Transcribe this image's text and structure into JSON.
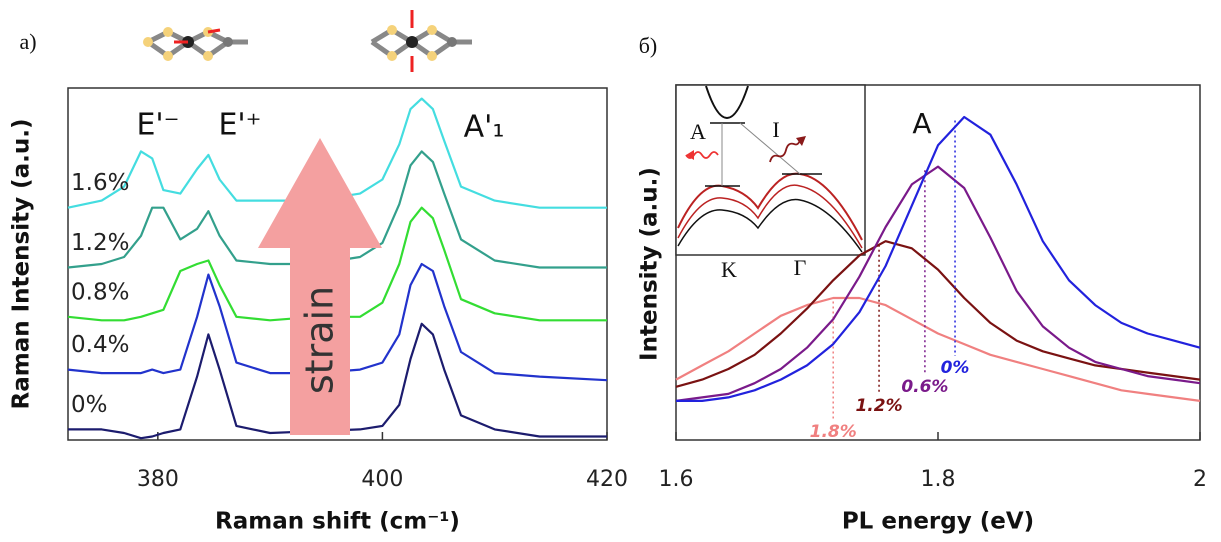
{
  "chart_data": [
    {
      "type": "line",
      "panel_label": "а)",
      "x_label": "Raman shift (cm⁻¹)",
      "y_label": "Raman Intensity (a.u.)",
      "xlim": [
        372,
        420
      ],
      "xticks": [
        380,
        400,
        420
      ],
      "ylim": [
        0,
        10
      ],
      "annotations": [
        "E'⁻",
        "E'⁺",
        "A'₁",
        "strain"
      ],
      "x": [
        372,
        375,
        377,
        378.5,
        379.5,
        380.5,
        382,
        383.5,
        384.5,
        385.5,
        387,
        390,
        394,
        398,
        400,
        401.5,
        402.5,
        403.5,
        404.5,
        405.5,
        407,
        410,
        414,
        420
      ],
      "series": [
        {
          "name": "0%",
          "color": "#1c1c6e",
          "values": [
            0.3,
            0.3,
            0.2,
            0.05,
            0.1,
            0.2,
            0.3,
            1.8,
            3.0,
            2.0,
            0.4,
            0.2,
            0.25,
            0.3,
            0.4,
            1.0,
            2.3,
            3.3,
            3.0,
            2.0,
            0.7,
            0.3,
            0.1,
            0.1
          ]
        },
        {
          "name": "0.4%",
          "color": "#2233cc",
          "values": [
            2.0,
            1.9,
            1.9,
            1.9,
            2.0,
            1.9,
            2.0,
            3.5,
            4.7,
            3.8,
            2.2,
            1.9,
            1.9,
            2.0,
            2.2,
            3.0,
            4.4,
            5.0,
            4.8,
            3.8,
            2.5,
            1.9,
            1.8,
            1.7
          ]
        },
        {
          "name": "0.8%",
          "color": "#33dd33",
          "values": [
            3.5,
            3.4,
            3.4,
            3.5,
            3.6,
            3.7,
            4.8,
            5.0,
            5.1,
            4.4,
            3.5,
            3.4,
            3.5,
            3.5,
            3.9,
            5.0,
            6.2,
            6.6,
            6.3,
            5.4,
            4.0,
            3.6,
            3.4,
            3.4
          ]
        },
        {
          "name": "1.2%",
          "color": "#33a08c",
          "values": [
            4.9,
            5.0,
            5.2,
            5.8,
            6.6,
            6.6,
            5.7,
            6.0,
            6.5,
            5.8,
            5.1,
            5.0,
            5.0,
            5.2,
            5.6,
            6.7,
            7.8,
            8.2,
            7.9,
            7.0,
            5.7,
            5.1,
            4.9,
            4.9
          ]
        },
        {
          "name": "1.6%",
          "color": "#44dde0",
          "values": [
            6.6,
            6.8,
            7.2,
            8.2,
            8.0,
            7.1,
            7.0,
            7.7,
            8.1,
            7.4,
            6.8,
            6.8,
            6.8,
            7.0,
            7.4,
            8.4,
            9.4,
            9.7,
            9.4,
            8.5,
            7.2,
            6.8,
            6.6,
            6.6
          ]
        }
      ]
    },
    {
      "type": "line",
      "panel_label": "б)",
      "x_label": "PL energy (eV)",
      "y_label": "Intensity (a.u.)",
      "xlim": [
        1.6,
        2
      ],
      "xticks": [
        1.6,
        1.8,
        2
      ],
      "ylim": [
        0,
        10
      ],
      "annotations": [
        "A"
      ],
      "inset_labels": [
        "A",
        "I",
        "K",
        "Γ"
      ],
      "x": [
        1.6,
        1.62,
        1.64,
        1.66,
        1.68,
        1.7,
        1.72,
        1.74,
        1.76,
        1.78,
        1.8,
        1.82,
        1.84,
        1.86,
        1.88,
        1.9,
        1.92,
        1.94,
        1.96,
        1.98,
        2
      ],
      "series": [
        {
          "name": "1.8%",
          "color": "#f08080",
          "peak": [
            1.72,
            3.9
          ],
          "values": [
            1.7,
            2.1,
            2.5,
            3.0,
            3.5,
            3.8,
            4.0,
            4.0,
            3.8,
            3.4,
            3.0,
            2.7,
            2.4,
            2.2,
            2.0,
            1.8,
            1.6,
            1.4,
            1.3,
            1.2,
            1.1
          ]
        },
        {
          "name": "1.2%",
          "color": "#7a1212",
          "peak": [
            1.755,
            5.5
          ],
          "values": [
            1.5,
            1.7,
            2.0,
            2.4,
            3.0,
            3.7,
            4.5,
            5.2,
            5.6,
            5.4,
            4.8,
            4.0,
            3.3,
            2.8,
            2.5,
            2.3,
            2.1,
            2.0,
            1.9,
            1.8,
            1.7
          ]
        },
        {
          "name": "0.6%",
          "color": "#7a1a8a",
          "peak": [
            1.79,
            7.6
          ],
          "values": [
            1.1,
            1.2,
            1.3,
            1.6,
            2.0,
            2.6,
            3.4,
            4.6,
            6.0,
            7.2,
            7.7,
            7.1,
            5.7,
            4.2,
            3.2,
            2.6,
            2.2,
            2.0,
            1.8,
            1.7,
            1.6
          ]
        },
        {
          "name": "0%",
          "color": "#2222dd",
          "peak": [
            1.813,
            9.0
          ],
          "values": [
            1.1,
            1.1,
            1.2,
            1.4,
            1.7,
            2.1,
            2.7,
            3.6,
            4.9,
            6.6,
            8.3,
            9.1,
            8.6,
            7.2,
            5.6,
            4.5,
            3.8,
            3.3,
            3.0,
            2.8,
            2.6
          ]
        }
      ]
    }
  ]
}
